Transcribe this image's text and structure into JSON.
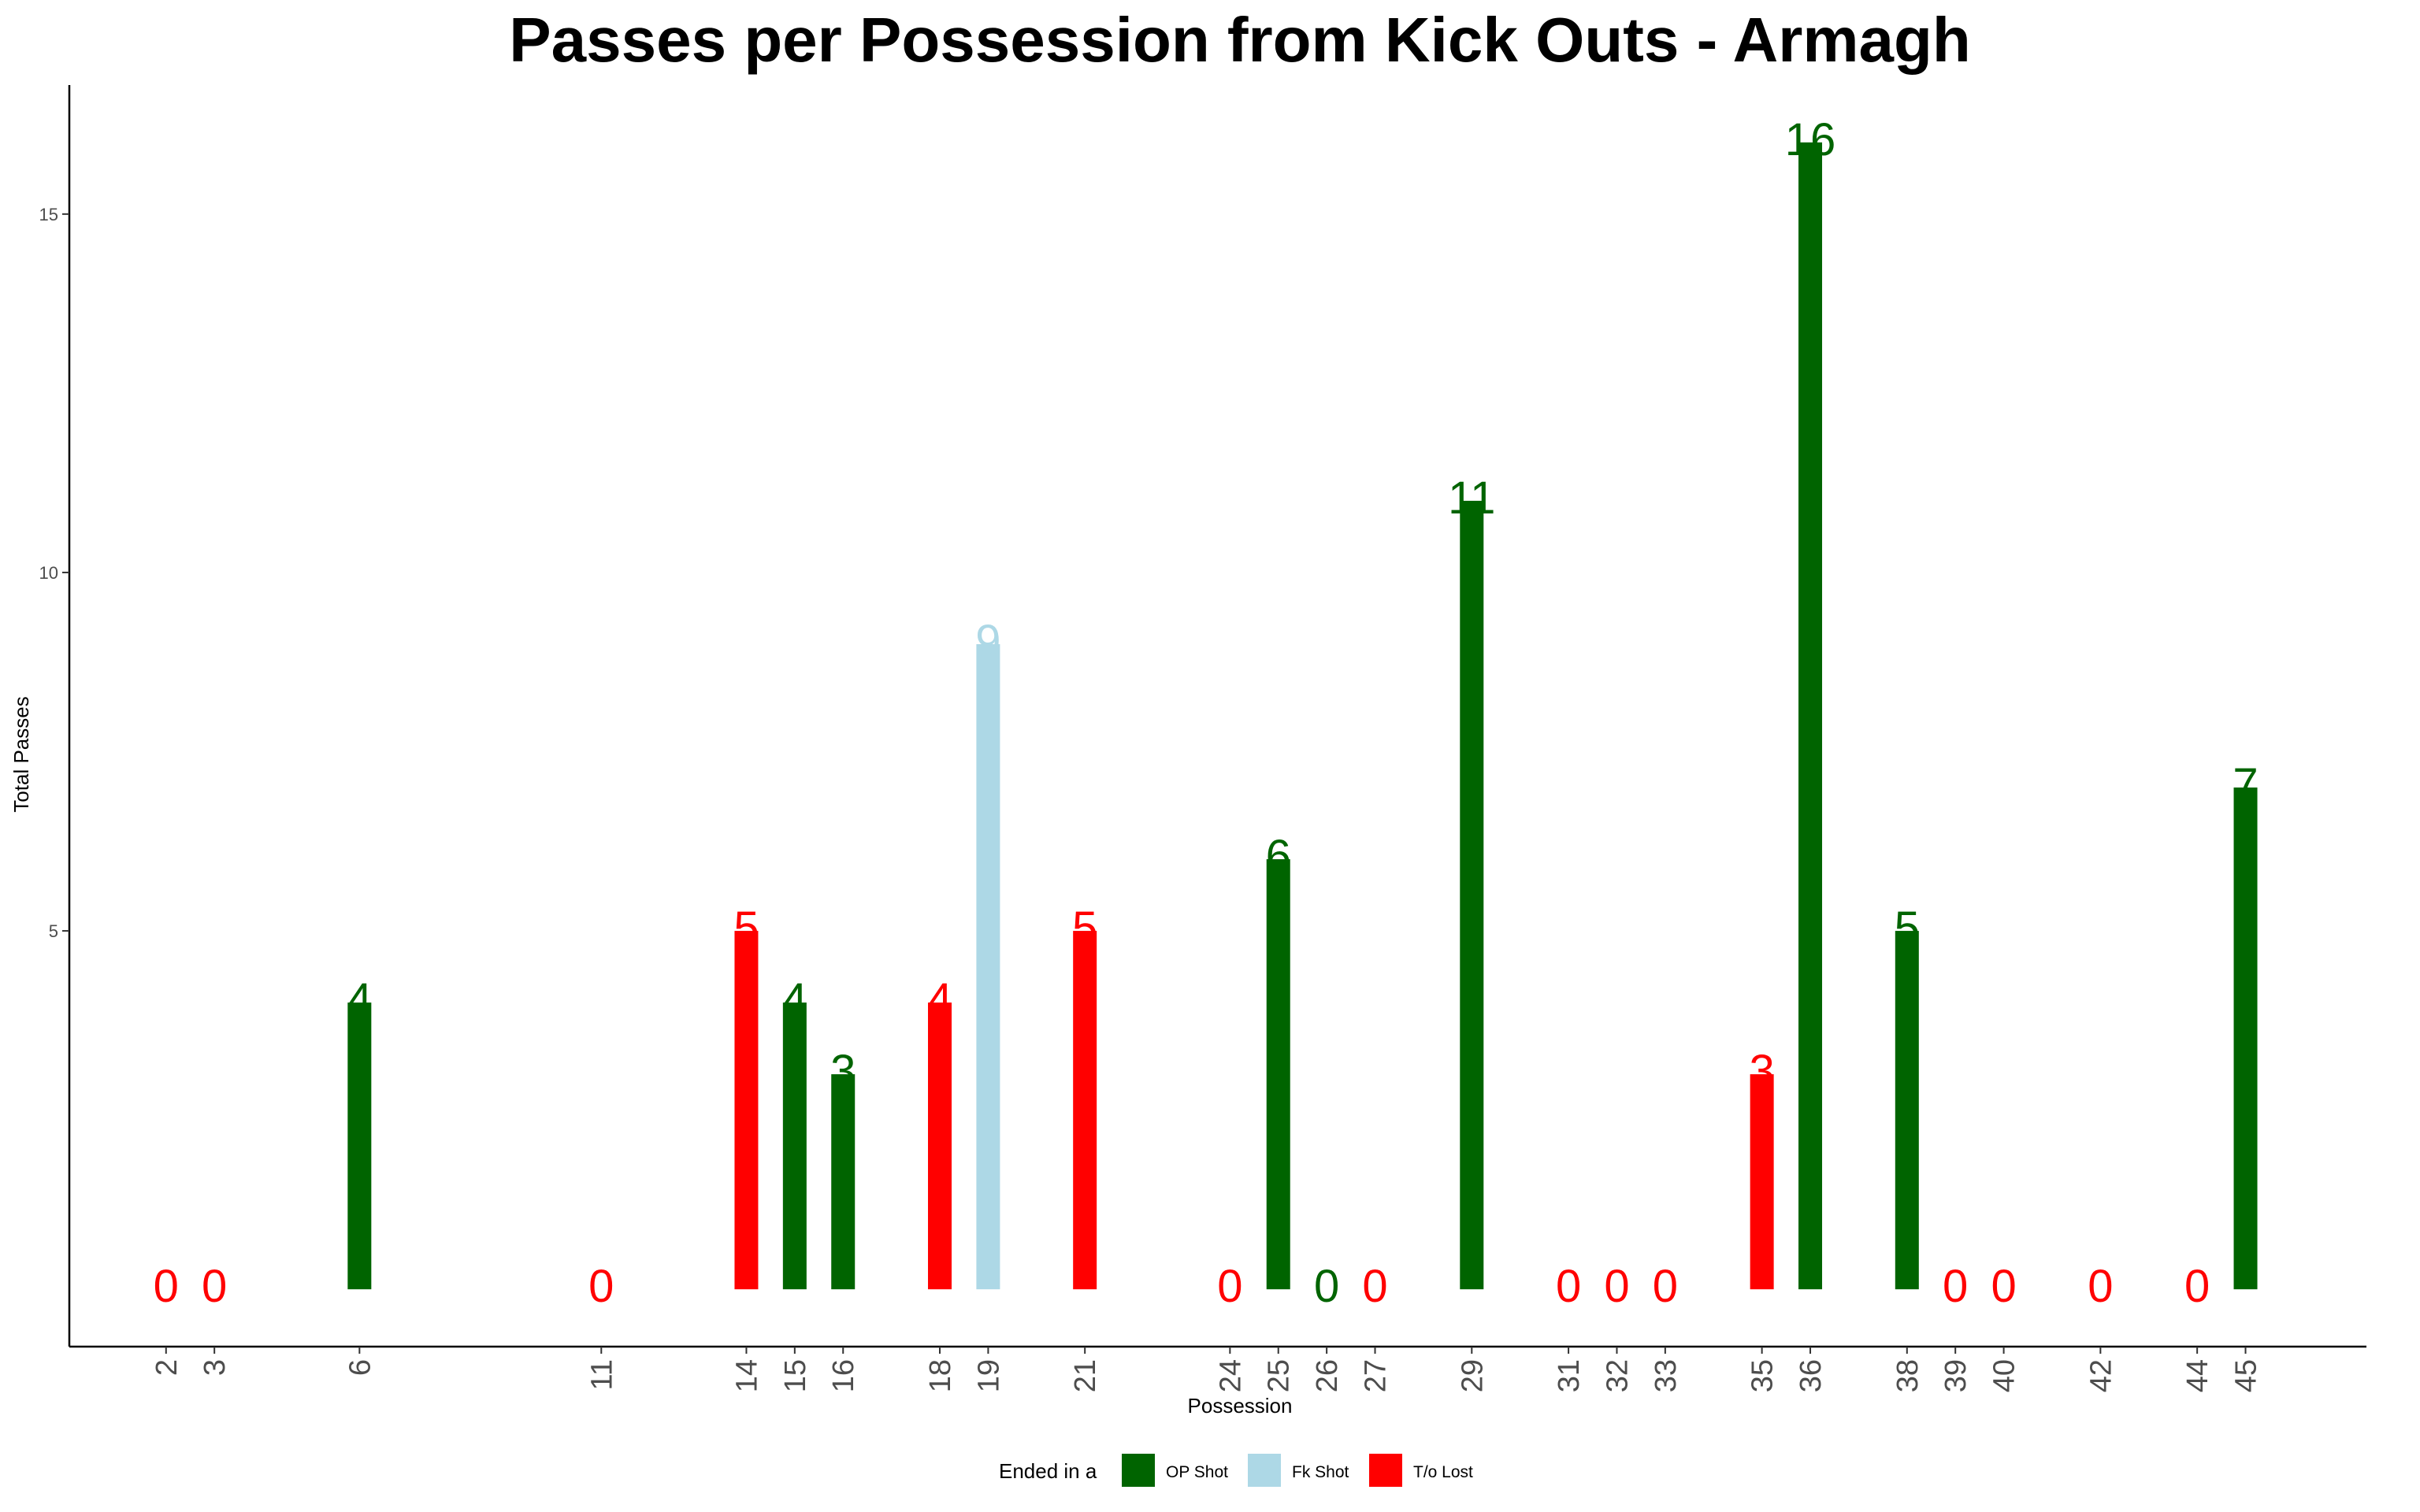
{
  "chart_data": {
    "type": "bar",
    "title": "Passes per Possession from Kick Outs - Armagh",
    "xlabel": "Possession",
    "ylabel": "Total Passes",
    "y_ticks": [
      5,
      10,
      15
    ],
    "ylim": [
      -0.8,
      16.8
    ],
    "xlim": [
      0,
      47.5
    ],
    "grid": false,
    "legend": {
      "title": "Ended in a",
      "position": "bottom",
      "entries": [
        {
          "key": "op",
          "label": "OP Shot",
          "color": "#006400"
        },
        {
          "key": "fk",
          "label": "Fk Shot",
          "color": "#ADD8E6"
        },
        {
          "key": "to",
          "label": "T/o Lost",
          "color": "#FF0000"
        }
      ]
    },
    "bars": [
      {
        "x": 2,
        "value": 0,
        "outcome": "to"
      },
      {
        "x": 3,
        "value": 0,
        "outcome": "to"
      },
      {
        "x": 6,
        "value": 4,
        "outcome": "op"
      },
      {
        "x": 11,
        "value": 0,
        "outcome": "to"
      },
      {
        "x": 14,
        "value": 5,
        "outcome": "to"
      },
      {
        "x": 15,
        "value": 4,
        "outcome": "op"
      },
      {
        "x": 16,
        "value": 3,
        "outcome": "op"
      },
      {
        "x": 18,
        "value": 4,
        "outcome": "to"
      },
      {
        "x": 19,
        "value": 9,
        "outcome": "fk"
      },
      {
        "x": 21,
        "value": 5,
        "outcome": "to"
      },
      {
        "x": 24,
        "value": 0,
        "outcome": "to"
      },
      {
        "x": 25,
        "value": 6,
        "outcome": "op"
      },
      {
        "x": 26,
        "value": 0,
        "outcome": "op"
      },
      {
        "x": 27,
        "value": 0,
        "outcome": "to"
      },
      {
        "x": 29,
        "value": 11,
        "outcome": "op"
      },
      {
        "x": 31,
        "value": 0,
        "outcome": "to"
      },
      {
        "x": 32,
        "value": 0,
        "outcome": "to"
      },
      {
        "x": 33,
        "value": 0,
        "outcome": "to"
      },
      {
        "x": 35,
        "value": 3,
        "outcome": "to"
      },
      {
        "x": 36,
        "value": 16,
        "outcome": "op"
      },
      {
        "x": 38,
        "value": 5,
        "outcome": "op"
      },
      {
        "x": 39,
        "value": 0,
        "outcome": "to"
      },
      {
        "x": 40,
        "value": 0,
        "outcome": "to"
      },
      {
        "x": 42,
        "value": 0,
        "outcome": "to"
      },
      {
        "x": 44,
        "value": 0,
        "outcome": "to"
      },
      {
        "x": 45,
        "value": 7,
        "outcome": "op"
      }
    ]
  }
}
